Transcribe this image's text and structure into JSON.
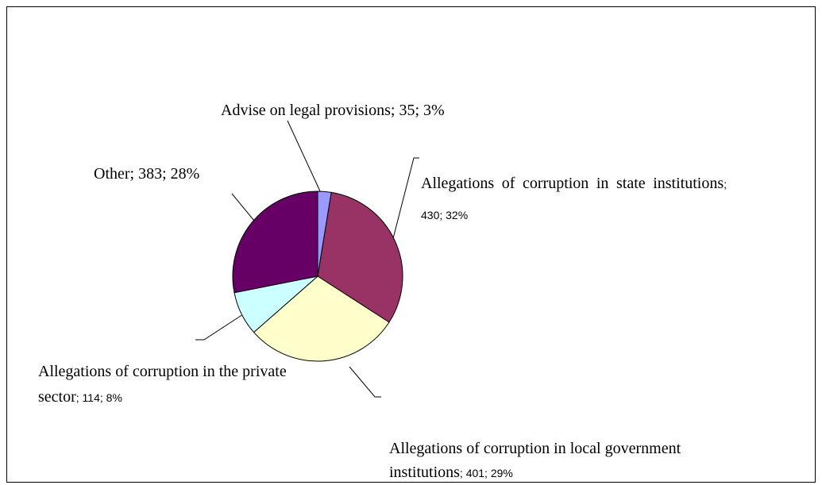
{
  "chart_data": {
    "type": "pie",
    "categories": [
      "Advise on legal provisions",
      "Allegations of corruption in state institutions",
      "Allegations of corruption in local government institutions",
      "Allegations of corruption in the private sector",
      "Other"
    ],
    "values": [
      35,
      430,
      401,
      114,
      383
    ],
    "percent_labels": [
      "3%",
      "32%",
      "29%",
      "8%",
      "28%"
    ],
    "separator": "; ",
    "colors": [
      "#9999ff",
      "#993366",
      "#ffffcc",
      "#ccffff",
      "#660066"
    ]
  }
}
